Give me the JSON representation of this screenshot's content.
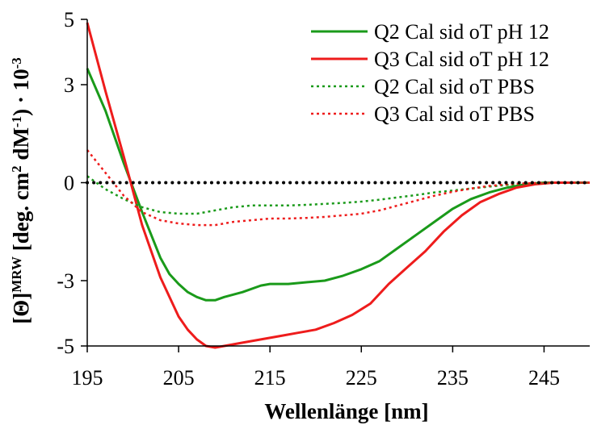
{
  "chart_data": {
    "type": "line",
    "xlabel": "Wellenlänge [nm]",
    "ylabel": {
      "lead": "[Θ]",
      "sup1": "MRW",
      "mid": " [deg. cm",
      "sup2": "2",
      "mid2": " dM",
      "sup3": "-1",
      "tail": ") · 10",
      "sup4": "-3"
    },
    "xlim": [
      195,
      250
    ],
    "ylim": [
      -5,
      5
    ],
    "x_ticks": [
      195,
      205,
      215,
      225,
      235,
      245
    ],
    "x_tick_labels": [
      "195",
      "205",
      "215",
      "225",
      "235",
      "245"
    ],
    "y_ticks": [
      5,
      3,
      0,
      -3,
      -5
    ],
    "y_tick_labels": [
      "5",
      "3",
      "0",
      "-3",
      "-5"
    ],
    "zero_line": true,
    "grid": false,
    "legend_position": "top-right",
    "series": [
      {
        "name": "Q2 Cal sid oT  pH 12",
        "color": "#1a9a1a",
        "style": "solid",
        "x": [
          195,
          197,
          199,
          201,
          203,
          204,
          205,
          206,
          207,
          208,
          209,
          210,
          212,
          214,
          215,
          217,
          219,
          221,
          223,
          225,
          227,
          229,
          231,
          233,
          235,
          237,
          239,
          241,
          243,
          245,
          247,
          250
        ],
        "y": [
          3.5,
          2.2,
          0.6,
          -0.9,
          -2.3,
          -2.8,
          -3.1,
          -3.35,
          -3.5,
          -3.6,
          -3.6,
          -3.5,
          -3.35,
          -3.15,
          -3.1,
          -3.1,
          -3.05,
          -3.0,
          -2.85,
          -2.65,
          -2.4,
          -2.0,
          -1.6,
          -1.2,
          -0.8,
          -0.5,
          -0.3,
          -0.15,
          -0.05,
          0.0,
          0.0,
          0.0
        ]
      },
      {
        "name": "Q3 Cal sid oT  pH 12",
        "color": "#ee1c1c",
        "style": "solid",
        "x": [
          195,
          197,
          199,
          201,
          203,
          205,
          206,
          207,
          208,
          209,
          210,
          212,
          214,
          216,
          218,
          220,
          222,
          224,
          226,
          228,
          230,
          232,
          234,
          236,
          238,
          240,
          242,
          244,
          246,
          248,
          250
        ],
        "y": [
          4.9,
          2.8,
          0.8,
          -1.3,
          -2.9,
          -4.1,
          -4.5,
          -4.8,
          -5.0,
          -5.05,
          -5.0,
          -4.9,
          -4.8,
          -4.7,
          -4.6,
          -4.5,
          -4.3,
          -4.05,
          -3.7,
          -3.1,
          -2.6,
          -2.1,
          -1.5,
          -1.0,
          -0.6,
          -0.35,
          -0.15,
          -0.05,
          0.0,
          0.0,
          0.0
        ]
      },
      {
        "name": "Q2 Cal sid oT  PBS",
        "color": "#1a9a1a",
        "style": "dotted",
        "x": [
          195,
          197,
          199,
          201,
          203,
          205,
          207,
          209,
          211,
          213,
          215,
          217,
          219,
          221,
          223,
          225,
          227,
          229,
          231,
          233,
          235,
          237,
          239,
          241,
          243,
          245,
          247,
          250
        ],
        "y": [
          0.2,
          -0.2,
          -0.5,
          -0.75,
          -0.9,
          -0.95,
          -0.95,
          -0.85,
          -0.75,
          -0.7,
          -0.7,
          -0.7,
          -0.68,
          -0.65,
          -0.62,
          -0.58,
          -0.52,
          -0.45,
          -0.38,
          -0.3,
          -0.24,
          -0.18,
          -0.12,
          -0.07,
          -0.03,
          0.0,
          0.0,
          0.0
        ]
      },
      {
        "name": "Q3 Cal sid oT  PBS",
        "color": "#ee1c1c",
        "style": "dotted",
        "x": [
          195,
          197,
          199,
          201,
          203,
          205,
          207,
          209,
          211,
          213,
          215,
          217,
          219,
          221,
          223,
          225,
          227,
          229,
          231,
          233,
          235,
          237,
          239,
          241,
          243,
          245,
          247,
          250
        ],
        "y": [
          1.0,
          0.3,
          -0.4,
          -0.9,
          -1.15,
          -1.25,
          -1.3,
          -1.3,
          -1.2,
          -1.15,
          -1.1,
          -1.1,
          -1.08,
          -1.05,
          -1.0,
          -0.95,
          -0.85,
          -0.7,
          -0.55,
          -0.4,
          -0.28,
          -0.18,
          -0.1,
          -0.05,
          -0.02,
          0.0,
          0.0,
          0.0
        ]
      }
    ]
  }
}
